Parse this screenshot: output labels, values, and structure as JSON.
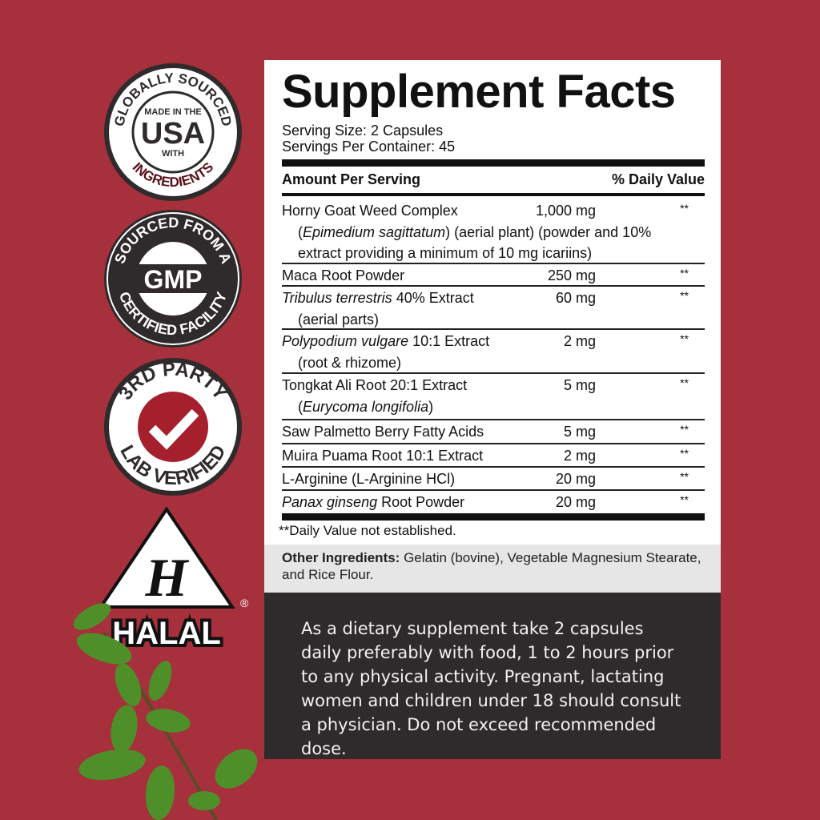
{
  "badges": {
    "usa": {
      "top": "GLOBALLY SOURCED",
      "line1": "MADE IN THE",
      "main": "USA",
      "line2": "WITH",
      "bottom": "INGREDIENTS"
    },
    "gmp": {
      "top": "SOURCED FROM A",
      "main": "GMP",
      "bottom": "CERTIFIED FACILITY"
    },
    "lab": {
      "top": "3RD PARTY",
      "bottom": "LAB VERIFIED"
    },
    "halal": {
      "letter": "H",
      "label": "HALAL",
      "mark": "®"
    }
  },
  "colors": {
    "background": "#a6303b",
    "dark": "#2f2a2b",
    "check": "#a51f2d"
  },
  "facts": {
    "title": "Supplement Facts",
    "serving_size": "Serving Size: 2 Capsules",
    "servings_per_container": "Servings Per Container: 45",
    "amount_header": "Amount Per Serving",
    "dv_header": "% Daily Value",
    "rows": [
      {
        "name_italic": "",
        "name": "Horny Goat Weed Complex",
        "amount": "1,000 mg",
        "dv": "**",
        "sub_pre": "(",
        "sub_italic": "Epimedium sagittatum",
        "sub_post": ") (aerial plant) (powder and 10%",
        "sub2": "extract providing a minimum of 10 mg icariins)"
      },
      {
        "name_italic": "",
        "name": "Maca Root Powder",
        "amount": "250 mg",
        "dv": "**"
      },
      {
        "name_italic": "Tribulus terrestris",
        "name": " 40% Extract",
        "amount": "60 mg",
        "dv": "**",
        "sub_pre": "(aerial parts)"
      },
      {
        "name_italic": "Polypodium vulgare",
        "name": " 10:1 Extract",
        "amount": "2 mg",
        "dv": "**",
        "sub_pre": "(root & rhizome)"
      },
      {
        "name_italic": "",
        "name": "Tongkat Ali Root 20:1 Extract",
        "amount": "5 mg",
        "dv": "**",
        "sub_pre": "(",
        "sub_italic": "Eurycoma longifolia",
        "sub_post": ")"
      },
      {
        "name_italic": "",
        "name": "Saw Palmetto Berry Fatty Acids",
        "amount": "5 mg",
        "dv": "**"
      },
      {
        "name_italic": "",
        "name": "Muira Puama Root 10:1 Extract",
        "amount": "2 mg",
        "dv": "**"
      },
      {
        "name_italic": "",
        "name": "L-Arginine (L-Arginine HCl)",
        "amount": "20 mg",
        "dv": "**"
      },
      {
        "name_italic": "Panax ginseng",
        "name": " Root Powder",
        "amount": "20 mg",
        "dv": "**"
      }
    ],
    "footnote": "**Daily Value not established.",
    "other_label": "Other Ingredients:",
    "other_text": " Gelatin (bovine), Vegetable Magnesium Stearate, and Rice Flour."
  },
  "directions": "As a dietary supplement take 2 capsules daily preferably with food, 1 to 2 hours prior to any physical activity. Pregnant, lactating women and children under 18 should consult a physician. Do not exceed recommended dose."
}
